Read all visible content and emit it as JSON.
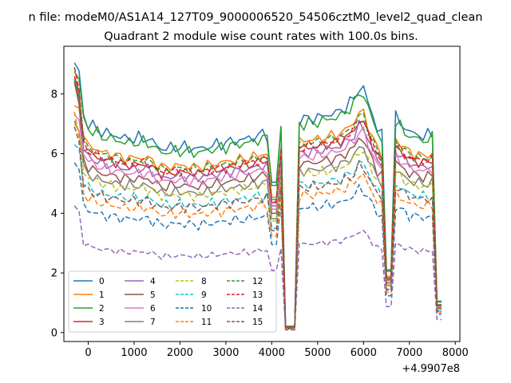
{
  "figure": {
    "suptitle": "n file: modeM0/AS1A14_127T09_9000006520_54506cztM0_level2_quad_clean",
    "title": "Quadrant 2 module wise count rates with 100.0s bins."
  },
  "chart_data": {
    "type": "line",
    "title": "Quadrant 2 module wise count rates with 100.0s bins.",
    "xlabel": "",
    "ylabel": "",
    "x_offset_label": "+4.9907e8",
    "xlim": [
      -530,
      8100
    ],
    "ylim": [
      -0.3,
      9.6
    ],
    "xticks": [
      0,
      1000,
      2000,
      3000,
      4000,
      5000,
      6000,
      7000,
      8000
    ],
    "yticks": [
      0,
      2,
      4,
      6,
      8
    ],
    "grid": false,
    "legend": {
      "placement": "lower-left",
      "columns": 4
    },
    "x_start": -300,
    "x_step": 100,
    "points": 81,
    "gaps": [
      {
        "start": 4000,
        "end": 4100,
        "level": 0.72
      },
      {
        "start": 4300,
        "end": 4500,
        "level": 0.03
      },
      {
        "start": 6500,
        "end": 6600,
        "level": 0.3
      },
      {
        "start": 7600,
        "end": 7700,
        "level": 0.15
      }
    ],
    "profile": [
      {
        "x": -300,
        "f": 1.32
      },
      {
        "x": -200,
        "f": 1.12
      },
      {
        "x": -100,
        "f": 1.04
      },
      {
        "x": 0,
        "f": 1.0
      },
      {
        "x": 300,
        "f": 0.96
      },
      {
        "x": 500,
        "f": 0.95
      },
      {
        "x": 800,
        "f": 0.93
      },
      {
        "x": 1300,
        "f": 0.93
      },
      {
        "x": 1600,
        "f": 0.88
      },
      {
        "x": 2000,
        "f": 0.89
      },
      {
        "x": 2400,
        "f": 0.88
      },
      {
        "x": 3000,
        "f": 0.91
      },
      {
        "x": 3500,
        "f": 0.93
      },
      {
        "x": 3800,
        "f": 0.95
      },
      {
        "x": 3900,
        "f": 0.95
      },
      {
        "x": 4200,
        "f": 1.0
      },
      {
        "x": 4600,
        "f": 1.02
      },
      {
        "x": 5000,
        "f": 1.03
      },
      {
        "x": 5500,
        "f": 1.06
      },
      {
        "x": 5800,
        "f": 1.12
      },
      {
        "x": 5950,
        "f": 1.2
      },
      {
        "x": 6100,
        "f": 1.1
      },
      {
        "x": 6300,
        "f": 0.98
      },
      {
        "x": 6400,
        "f": 0.95
      },
      {
        "x": 6700,
        "f": 1.03
      },
      {
        "x": 7000,
        "f": 0.96
      },
      {
        "x": 7300,
        "f": 0.94
      },
      {
        "x": 7500,
        "f": 0.95
      },
      {
        "x": 7700,
        "f": 0.95
      }
    ],
    "series": [
      {
        "name": "0",
        "color": "#1f77b4",
        "dash": "solid",
        "base": 7.0,
        "start": 9.05,
        "noise": 0.25
      },
      {
        "name": "1",
        "color": "#ff7f0e",
        "dash": "solid",
        "base": 6.3,
        "start": 7.6,
        "noise": 0.2
      },
      {
        "name": "2",
        "color": "#2ca02c",
        "dash": "solid",
        "base": 6.85,
        "start": 8.75,
        "noise": 0.25
      },
      {
        "name": "3",
        "color": "#d62728",
        "dash": "solid",
        "base": 6.05,
        "start": 8.6,
        "noise": 0.2
      },
      {
        "name": "4",
        "color": "#9467bd",
        "dash": "solid",
        "base": 5.9,
        "start": 8.5,
        "noise": 0.2
      },
      {
        "name": "5",
        "color": "#8c564b",
        "dash": "solid",
        "base": 5.55,
        "start": 8.4,
        "noise": 0.2
      },
      {
        "name": "6",
        "color": "#e377c2",
        "dash": "solid",
        "base": 5.75,
        "start": 7.3,
        "noise": 0.2
      },
      {
        "name": "7",
        "color": "#7f7f7f",
        "dash": "solid",
        "base": 5.3,
        "start": 7.1,
        "noise": 0.2
      },
      {
        "name": "8",
        "color": "#bcbd22",
        "dash": "dashed",
        "base": 5.2,
        "start": 7.0,
        "noise": 0.2
      },
      {
        "name": "9",
        "color": "#17becf",
        "dash": "dashed",
        "base": 4.85,
        "start": 6.3,
        "noise": 0.2
      },
      {
        "name": "10",
        "color": "#1f77b4",
        "dash": "dashed",
        "base": 4.1,
        "start": 5.7,
        "noise": 0.2
      },
      {
        "name": "11",
        "color": "#ff7f0e",
        "dash": "dashed",
        "base": 4.5,
        "start": 7.4,
        "noise": 0.2
      },
      {
        "name": "12",
        "color": "#2ca02c",
        "dash": "dashed",
        "base": 6.2,
        "start": 8.5,
        "noise": 0.2
      },
      {
        "name": "13",
        "color": "#d62728",
        "dash": "dashed",
        "base": 6.1,
        "start": 8.9,
        "noise": 0.2
      },
      {
        "name": "14",
        "color": "#9467bd",
        "dash": "dashed",
        "base": 2.9,
        "start": 4.25,
        "noise": 0.12
      },
      {
        "name": "15",
        "color": "#8c564b",
        "dash": "dashed",
        "base": 4.75,
        "start": 6.9,
        "noise": 0.2
      }
    ]
  }
}
